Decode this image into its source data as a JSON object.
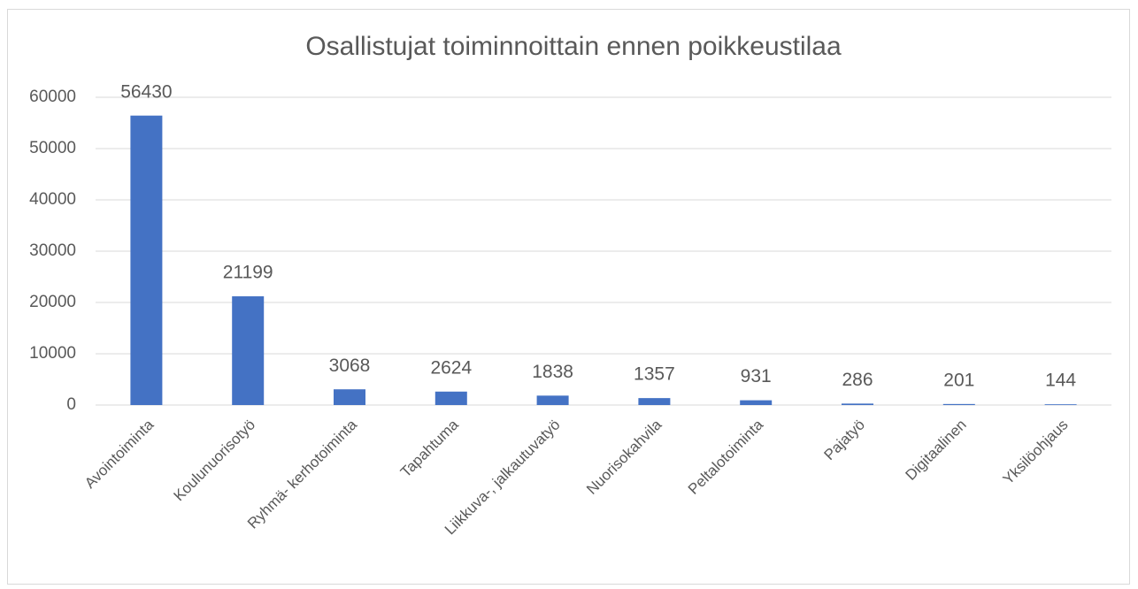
{
  "chart_data": {
    "type": "bar",
    "title": "Osallistujat toiminnoittain ennen poikkeustilaa",
    "categories": [
      "Avointoiminta",
      "Koulunuorisotyö",
      "Ryhmä- kerhotoiminta",
      "Tapahtuma",
      "Liikkuva-, jalkautuvatyö",
      "Nuorisokahvila",
      "Peltalotoiminta",
      "Pajatyö",
      "Digitaalinen",
      "Yksilöohjaus"
    ],
    "values": [
      56430,
      21199,
      3068,
      2624,
      1838,
      1357,
      931,
      286,
      201,
      144
    ],
    "color": "#4472c4",
    "ylim": [
      0,
      60000
    ],
    "yticks": [
      0,
      10000,
      20000,
      30000,
      40000,
      50000,
      60000
    ],
    "grid": true
  }
}
